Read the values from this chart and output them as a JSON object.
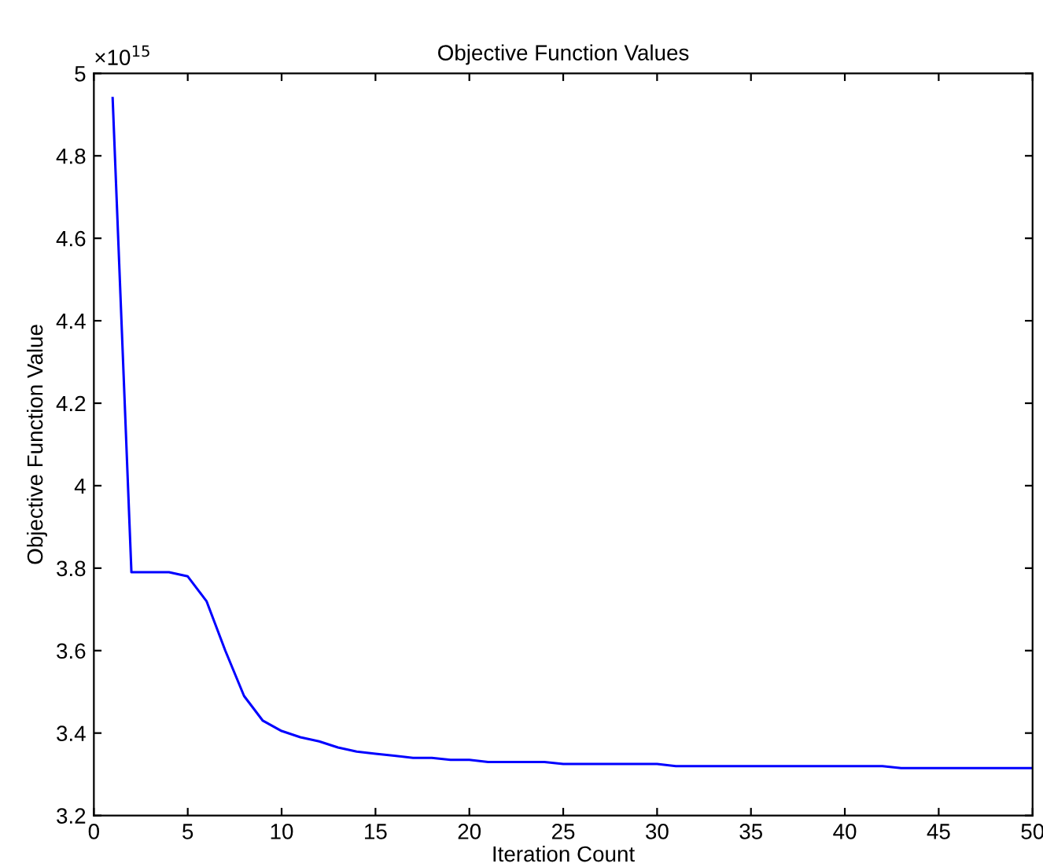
{
  "chart_data": {
    "type": "line",
    "title": "Objective Function Values",
    "xlabel": "Iteration Count",
    "ylabel": "Objective Function Value",
    "x": [
      1,
      2,
      3,
      4,
      5,
      6,
      7,
      8,
      9,
      10,
      11,
      12,
      13,
      14,
      15,
      16,
      17,
      18,
      19,
      20,
      21,
      22,
      23,
      24,
      25,
      26,
      27,
      28,
      29,
      30,
      31,
      32,
      33,
      34,
      35,
      36,
      37,
      38,
      39,
      40,
      41,
      42,
      43,
      44,
      45,
      46,
      47,
      48,
      49,
      50
    ],
    "series": [
      {
        "color": "#0000ff",
        "values": [
          4.94,
          3.79,
          3.79,
          3.79,
          3.78,
          3.72,
          3.6,
          3.49,
          3.43,
          3.405,
          3.39,
          3.38,
          3.365,
          3.355,
          3.35,
          3.345,
          3.34,
          3.34,
          3.335,
          3.335,
          3.33,
          3.33,
          3.33,
          3.33,
          3.325,
          3.325,
          3.325,
          3.325,
          3.325,
          3.325,
          3.32,
          3.32,
          3.32,
          3.32,
          3.32,
          3.32,
          3.32,
          3.32,
          3.32,
          3.32,
          3.32,
          3.32,
          3.315,
          3.315,
          3.315,
          3.315,
          3.315,
          3.315,
          3.315,
          3.315
        ]
      }
    ],
    "xlim": [
      0,
      50
    ],
    "xticks": [
      0,
      5,
      10,
      15,
      20,
      25,
      30,
      35,
      40,
      45,
      50
    ],
    "ylim": [
      3.2,
      5
    ],
    "yticks": [
      3.2,
      3.4,
      3.6,
      3.8,
      4,
      4.2,
      4.4,
      4.6,
      4.8,
      5
    ],
    "annotations": [
      "×10$^{15}$"
    ],
    "grid": false,
    "marker": "none",
    "line_style": "solid"
  }
}
